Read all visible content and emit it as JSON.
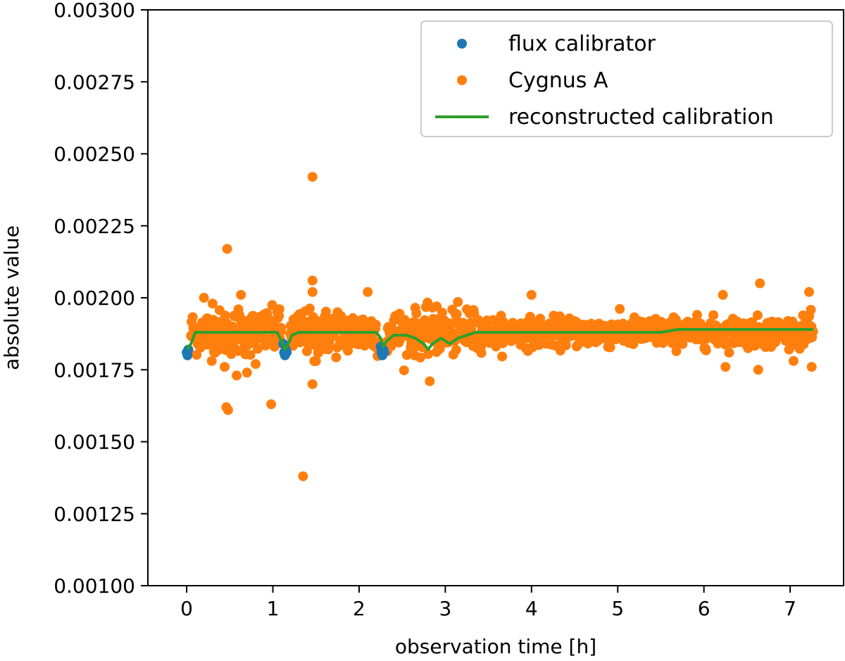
{
  "chart_data": {
    "type": "scatter",
    "title": "",
    "xlabel": "observation time [h]",
    "ylabel": "absolute value",
    "xlim": [
      -0.45,
      7.62
    ],
    "ylim": [
      0.001,
      0.003
    ],
    "xticks": [
      0,
      1,
      2,
      3,
      4,
      5,
      6,
      7
    ],
    "xtick_labels": [
      "0",
      "1",
      "2",
      "3",
      "4",
      "5",
      "6",
      "7"
    ],
    "yticks": [
      0.001,
      0.00125,
      0.0015,
      0.00175,
      0.002,
      0.00225,
      0.0025,
      0.00275,
      0.003
    ],
    "ytick_labels": [
      "0.00100",
      "0.00125",
      "0.00150",
      "0.00175",
      "0.00200",
      "0.00225",
      "0.00250",
      "0.00275",
      "0.00300"
    ],
    "grid": false,
    "legend_position": "top-right",
    "series": [
      {
        "name": "flux calibrator",
        "kind": "scatter",
        "color": "#1f77b4",
        "x": [
          0.0,
          0.01,
          0.02,
          1.12,
          1.13,
          1.14,
          1.15,
          1.16,
          2.25,
          2.26,
          2.27,
          2.28,
          2.29
        ],
        "y": [
          0.00181,
          0.0018,
          0.00182,
          0.00184,
          0.00181,
          0.0018,
          0.00182,
          0.00181,
          0.00183,
          0.00181,
          0.0018,
          0.00182,
          0.00181
        ]
      },
      {
        "name": "Cygnus A",
        "kind": "scatter",
        "color": "#ff7f0e",
        "description_of_bulk": "dense band of points 0.05-1.1 h, 1.2-2.2 h, 2.3-7.27 h around 0.00188 with spread about ±0.00008",
        "band": {
          "segments": [
            [
              0.05,
              1.1
            ],
            [
              1.2,
              2.22
            ],
            [
              2.32,
              7.27
            ]
          ],
          "center": 0.00188,
          "spread": 6e-05
        },
        "x": [
          0.47,
          0.46,
          0.48,
          0.98,
          1.35,
          1.46,
          1.46,
          1.46,
          1.46,
          0.63,
          0.58,
          0.7,
          2.1,
          2.82,
          4.0,
          6.65,
          6.22,
          7.22,
          0.2,
          0.3,
          0.44,
          0.8,
          1.05,
          1.48,
          2.9,
          3.25,
          6.63,
          7.25,
          6.25,
          0.6,
          1.75,
          1.5
        ],
        "y": [
          0.00217,
          0.00162,
          0.00161,
          0.00163,
          0.00138,
          0.00242,
          0.00206,
          0.00202,
          0.0017,
          0.00201,
          0.00173,
          0.00174,
          0.00202,
          0.00171,
          0.00201,
          0.00205,
          0.00201,
          0.00202,
          0.002,
          0.00198,
          0.00176,
          0.00177,
          0.00195,
          0.00178,
          0.00197,
          0.00196,
          0.00175,
          0.00176,
          0.00176,
          0.00196,
          0.00195,
          0.00178
        ]
      },
      {
        "name": "reconstructed calibration",
        "kind": "line",
        "color": "#2ca02c",
        "x": [
          0.0,
          0.05,
          0.1,
          0.15,
          0.3,
          0.5,
          0.7,
          0.9,
          1.0,
          1.05,
          1.1,
          1.14,
          1.18,
          1.22,
          1.3,
          1.5,
          1.7,
          1.9,
          2.1,
          2.2,
          2.25,
          2.28,
          2.32,
          2.4,
          2.55,
          2.65,
          2.75,
          2.8,
          2.85,
          2.95,
          3.05,
          3.15,
          3.25,
          3.35,
          3.5,
          3.8,
          4.1,
          4.5,
          5.0,
          5.5,
          5.7,
          6.0,
          6.3,
          6.6,
          7.0,
          7.27
        ],
        "y": [
          0.00182,
          0.00184,
          0.00188,
          0.00188,
          0.00188,
          0.00188,
          0.00188,
          0.00188,
          0.00188,
          0.00188,
          0.00185,
          0.00182,
          0.00184,
          0.00187,
          0.00188,
          0.00188,
          0.00188,
          0.00188,
          0.00188,
          0.00188,
          0.00186,
          0.00183,
          0.00185,
          0.00187,
          0.00187,
          0.00186,
          0.00184,
          0.00182,
          0.00184,
          0.00186,
          0.00184,
          0.00186,
          0.00187,
          0.00188,
          0.00188,
          0.00188,
          0.00188,
          0.00188,
          0.00188,
          0.00188,
          0.00189,
          0.00189,
          0.00189,
          0.00189,
          0.00189,
          0.00189
        ]
      }
    ]
  }
}
